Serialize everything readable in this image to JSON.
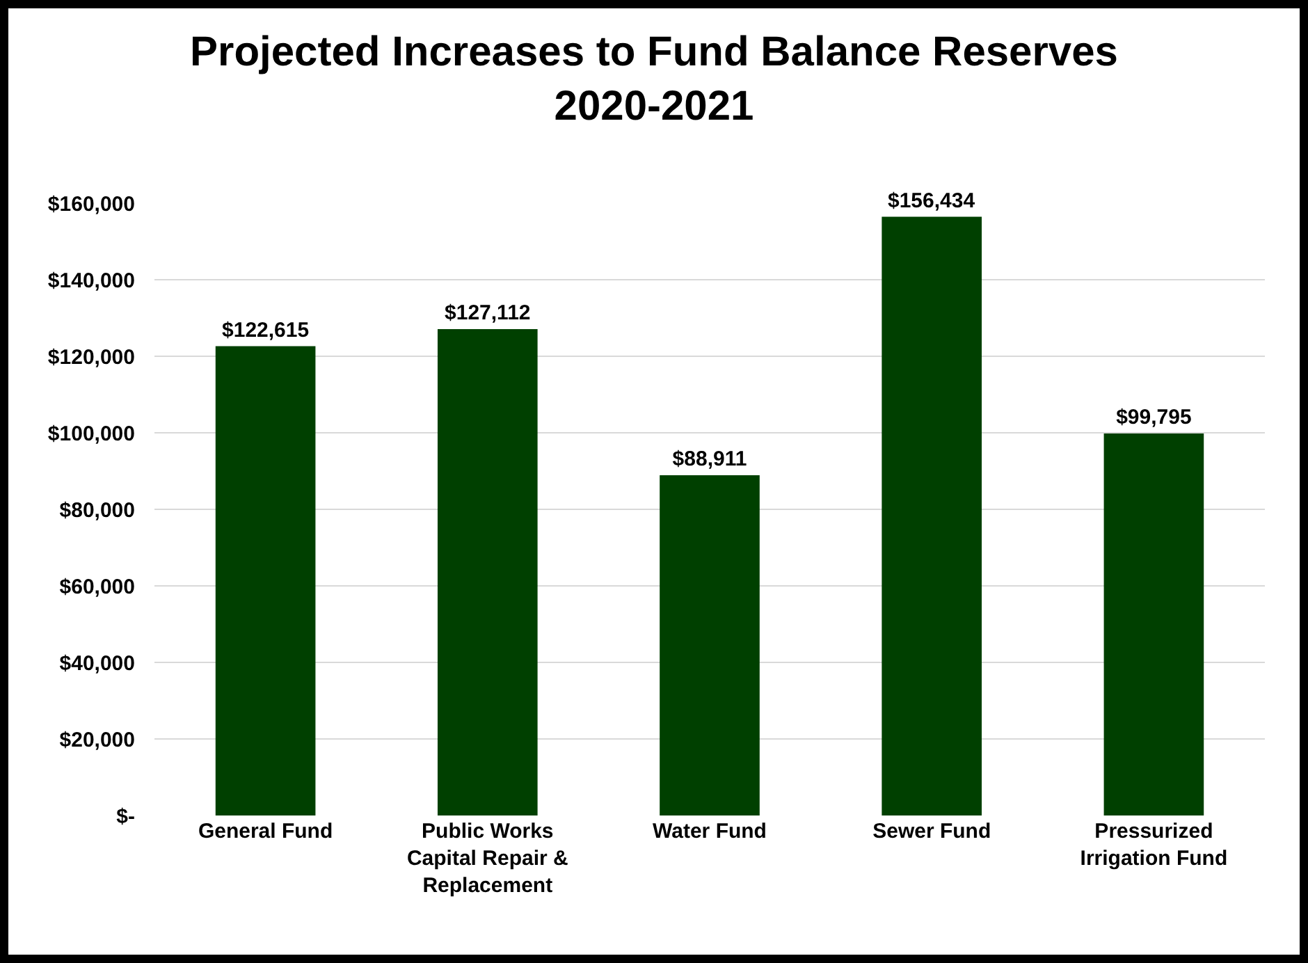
{
  "chart_data": {
    "type": "bar",
    "title": "Projected Increases to Fund Balance Reserves 2020-2021",
    "categories": [
      "General Fund",
      "Public Works Capital Repair & Replacement",
      "Water Fund",
      "Sewer Fund",
      "Pressurized Irrigation Fund"
    ],
    "values": [
      122615,
      127112,
      88911,
      156434,
      99795
    ],
    "value_labels": [
      "$122,615",
      "$127,112",
      "$88,911",
      "$156,434",
      "$99,795"
    ],
    "color": "#004000",
    "ylim": [
      0,
      160000
    ],
    "yticks": [
      {
        "value": 0,
        "label": "$-"
      },
      {
        "value": 20000,
        "label": "$20,000"
      },
      {
        "value": 40000,
        "label": "$40,000"
      },
      {
        "value": 60000,
        "label": "$60,000"
      },
      {
        "value": 80000,
        "label": "$80,000"
      },
      {
        "value": 100000,
        "label": "$100,000"
      },
      {
        "value": 120000,
        "label": "$120,000"
      },
      {
        "value": 140000,
        "label": "$140,000"
      },
      {
        "value": 160000,
        "label": "$160,000"
      }
    ],
    "grid": true
  }
}
